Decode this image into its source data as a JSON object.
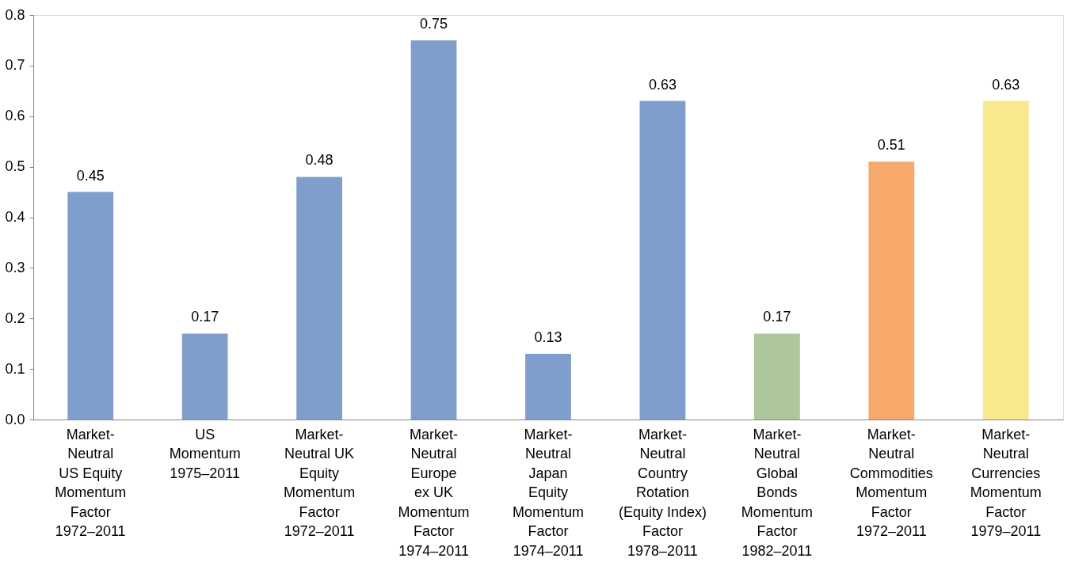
{
  "chart_data": {
    "type": "bar",
    "categories": [
      "Market-\nNeutral\nUS Equity\nMomentum\nFactor\n1972–2011",
      "US\nMomentum\n1975–2011",
      "Market-\nNeutral UK\nEquity\nMomentum\nFactor\n1972–2011",
      "Market-\nNeutral\nEurope\nex UK\nMomentum\nFactor\n1974–2011",
      "Market-\nNeutral\nJapan\nEquity\nMomentum\nFactor\n1974–2011",
      "Market-\nNeutral\nCountry\nRotation\n(Equity Index)\nFactor\n1978–2011",
      "Market-\nNeutral\nGlobal\nBonds\nMomentum\nFactor\n1982–2011",
      "Market-\nNeutral\nCommodities\nMomentum\nFactor\n1972–2011",
      "Market-\nNeutral\nCurrencies\nMomentum\nFactor\n1979–2011"
    ],
    "values": [
      0.45,
      0.17,
      0.48,
      0.75,
      0.13,
      0.63,
      0.17,
      0.51,
      0.63
    ],
    "colors": [
      "#7f9ecb",
      "#7f9ecb",
      "#7f9ecb",
      "#7f9ecb",
      "#7f9ecb",
      "#7f9ecb",
      "#adc69a",
      "#f6a96a",
      "#f9e98e"
    ],
    "ylim": [
      0,
      0.8
    ],
    "yticks": [
      {
        "value": 0,
        "label": "0.0"
      },
      0.1,
      0.2,
      0.3,
      0.4,
      0.5,
      0.6,
      0.7,
      0.8
    ],
    "data_labels": true,
    "grid": false,
    "legend": false
  }
}
